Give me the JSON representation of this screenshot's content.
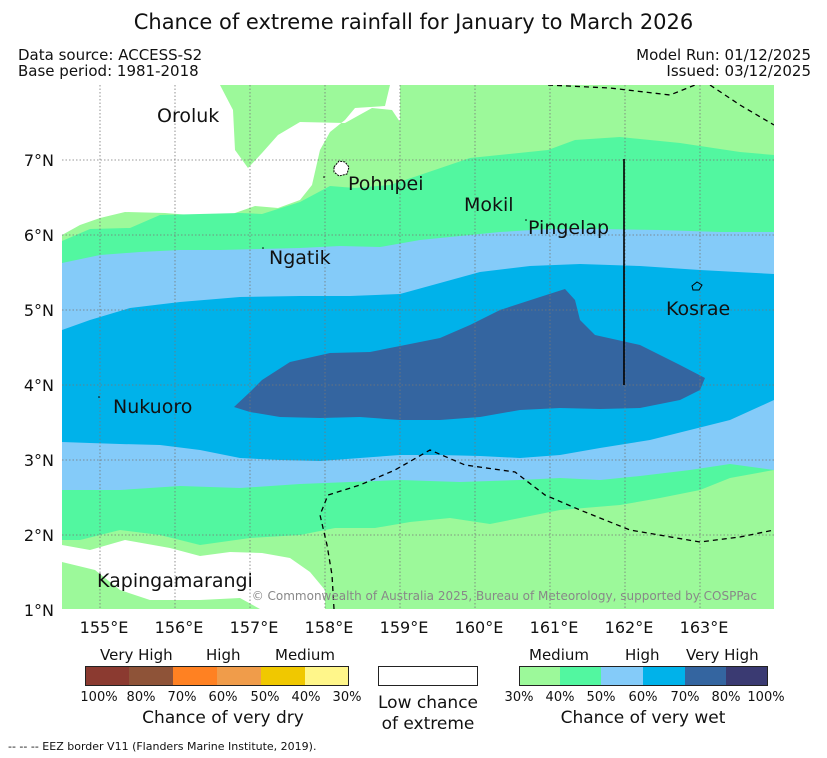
{
  "title": "Chance of extreme rainfall for January to March 2026",
  "data_source": "Data source: ACCESS-S2",
  "base_period": "Base period: 1981-2018",
  "model_run": "Model Run: 01/12/2025",
  "issued": "Issued: 03/12/2025",
  "map": {
    "lon_labels": [
      "155°E",
      "156°E",
      "157°E",
      "158°E",
      "159°E",
      "160°E",
      "161°E",
      "162°E",
      "163°E"
    ],
    "lat_labels": [
      "7°N",
      "6°N",
      "5°N",
      "4°N",
      "3°N",
      "2°N",
      "1°N"
    ],
    "places": [
      "Oroluk",
      "Pohnpei",
      "Mokil",
      "Pingelap",
      "Ngatik",
      "Kosrae",
      "Nukuoro",
      "Kapingamarangi"
    ],
    "copyright": "© Commonwealth of Australia 2025, Bureau of Meteorology, supported by COSPPac"
  },
  "legend": {
    "dry": {
      "categories": [
        "Very High",
        "High",
        "Medium"
      ],
      "ticks": [
        "100%",
        "80%",
        "70%",
        "60%",
        "50%",
        "40%",
        "30%"
      ],
      "colors": [
        "#8b3a30",
        "#8e5338",
        "#ff8122",
        "#f09c4a",
        "#f0c800",
        "#fff68a"
      ],
      "caption": "Chance of very dry"
    },
    "low": {
      "caption_line1": "Low chance",
      "caption_line2": "of extreme"
    },
    "wet": {
      "categories": [
        "Medium",
        "High",
        "Very High"
      ],
      "ticks": [
        "30%",
        "40%",
        "50%",
        "60%",
        "70%",
        "80%",
        "100%"
      ],
      "colors": [
        "#9cf99a",
        "#52f7a0",
        "#84cbf9",
        "#00b2ea",
        "#3465a0",
        "#3a3a72"
      ],
      "caption": "Chance of very wet"
    }
  },
  "footnote": "--  --  -- EEZ border V11 (Flanders Marine Institute, 2019)."
}
